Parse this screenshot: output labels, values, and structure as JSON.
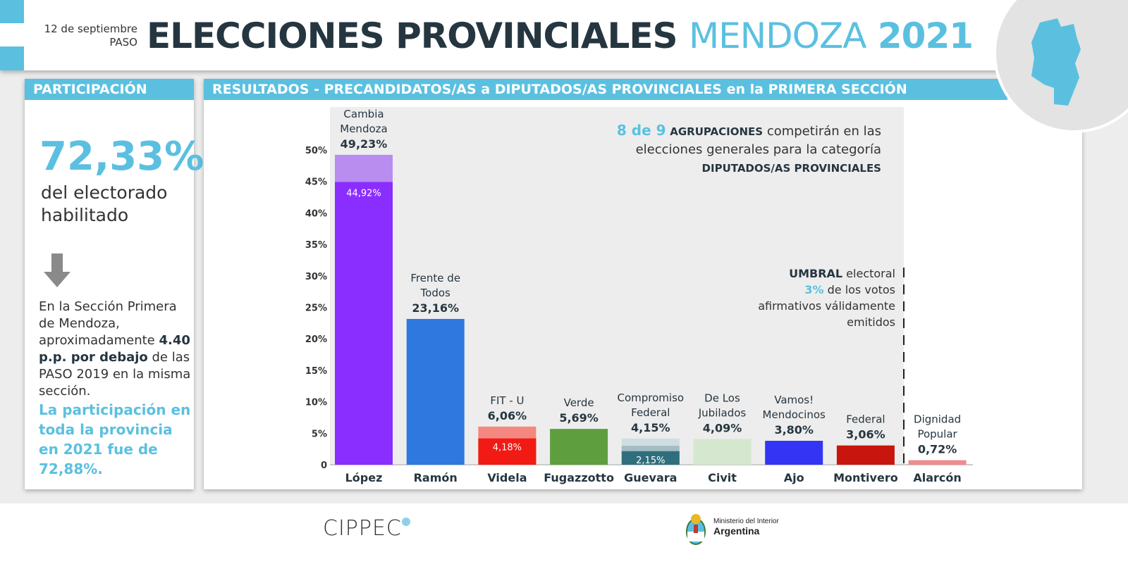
{
  "header": {
    "date": "12 de septiembre",
    "type": "PASO",
    "title_main": "ELECCIONES PROVINCIALES",
    "title_place": "MENDOZA",
    "title_year": "2021"
  },
  "participation": {
    "label": "PARTICIPACIÓN",
    "value": "72,33%",
    "sub1": "del electorado",
    "sub2": "habilitado",
    "text1": "En la Sección Primera de Mendoza, aproximadamente ",
    "text_bold": "4.40 p.p. por debajo",
    "text2": " de las PASO 2019 en la misma sección.",
    "highlight": "La participación en toda la provincia en 2021 fue de 72,88%."
  },
  "results": {
    "label_a": "RESULTADOS - PRECANDIDATOS/AS a DIPUTADOS/AS PROVINCIALES en la ",
    "label_b": "PRIMERA SECCIÓN"
  },
  "note": {
    "n": "8 de 9",
    "bold1": "AGRUPACIONES",
    "t1": " competirán en las",
    "t2": "elecciones generales para la categoría",
    "bold2": "DIPUTADOS/AS PROVINCIALES"
  },
  "threshold": {
    "bold": "UMBRAL",
    "t1": " electoral",
    "n": "3%",
    "t2": " de los votos",
    "t3": "afirmativos válidamente",
    "t4": "emitidos",
    "value": 3
  },
  "chart_data": {
    "type": "bar",
    "ylim": [
      0,
      50
    ],
    "yticks": [
      "0",
      "5%",
      "10%",
      "15%",
      "20%",
      "25%",
      "30%",
      "35%",
      "40%",
      "45%",
      "50%"
    ],
    "grid": false,
    "bars": [
      {
        "candidate": "López",
        "party": [
          "Cambia",
          "Mendoza"
        ],
        "total": 49.23,
        "label": "49,23%",
        "inner": 44.92,
        "inner_label": "44,92%",
        "colors": [
          "#8a2eff",
          "#b98df0"
        ]
      },
      {
        "candidate": "Ramón",
        "party": [
          "Frente de",
          "Todos"
        ],
        "total": 23.16,
        "label": "23,16%",
        "colors": [
          "#2f78e0"
        ]
      },
      {
        "candidate": "Videla",
        "party": [
          "FIT - U"
        ],
        "total": 6.06,
        "label": "6,06%",
        "inner": 4.18,
        "inner_label": "4,18%",
        "colors": [
          "#f21a14",
          "#f4877f"
        ]
      },
      {
        "candidate": "Fugazzotto",
        "party": [
          "Verde"
        ],
        "total": 5.69,
        "label": "5,69%",
        "colors": [
          "#5e9e3e"
        ]
      },
      {
        "candidate": "Guevara",
        "party": [
          "Compromiso",
          "Federal"
        ],
        "total": 4.15,
        "label": "4,15%",
        "inner": 2.15,
        "inner_label": "2,15%",
        "middle": 3.0,
        "colors": [
          "#2f6f7d",
          "#a4bcc4",
          "#cfdde2"
        ]
      },
      {
        "candidate": "Civit",
        "party": [
          "De Los",
          "Jubilados"
        ],
        "total": 4.09,
        "label": "4,09%",
        "colors": [
          "#d5e8cf"
        ]
      },
      {
        "candidate": "Ajo",
        "party": [
          "Vamos!",
          "Mendocinos"
        ],
        "total": 3.8,
        "label": "3,80%",
        "colors": [
          "#3434f5"
        ]
      },
      {
        "candidate": "Montivero",
        "party": [
          "Federal"
        ],
        "total": 3.06,
        "label": "3,06%",
        "colors": [
          "#c8160e"
        ]
      },
      {
        "candidate": "Alarcón",
        "party": [
          "Dignidad",
          "Popular"
        ],
        "total": 0.72,
        "label": "0,72%",
        "colors": [
          "#ef8b8f"
        ]
      }
    ]
  },
  "footer": {
    "logo1": "CIPPEC",
    "logo2a": "Ministerio del Interior",
    "logo2b": "Argentina"
  },
  "colors": {
    "accent": "#5bc0e0",
    "dark": "#263640"
  }
}
